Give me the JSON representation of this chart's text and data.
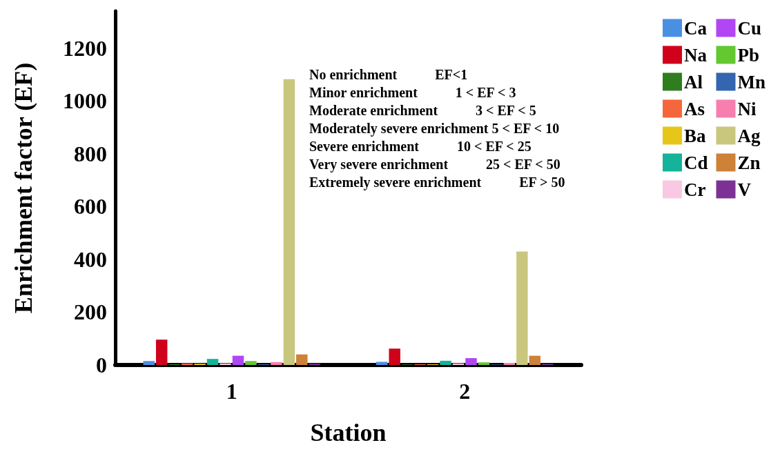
{
  "chart_data": {
    "type": "bar",
    "xlabel": "Station",
    "ylabel": "Enrichment factor (EF)",
    "categories": [
      "1",
      "2"
    ],
    "series": [
      {
        "name": "Ca",
        "color": "#4a90e2",
        "values": [
          15,
          12
        ]
      },
      {
        "name": "Na",
        "color": "#d0021b",
        "values": [
          96,
          62
        ]
      },
      {
        "name": "Al",
        "color": "#2e7d1e",
        "values": [
          3,
          2
        ]
      },
      {
        "name": "As",
        "color": "#f5673a",
        "values": [
          6,
          3
        ]
      },
      {
        "name": "Ba",
        "color": "#e6c619",
        "values": [
          5,
          3
        ]
      },
      {
        "name": "Cd",
        "color": "#14b39a",
        "values": [
          23,
          16
        ]
      },
      {
        "name": "Cr",
        "color": "#f9c8e2",
        "values": [
          6,
          6
        ]
      },
      {
        "name": "Cu",
        "color": "#b146f5",
        "values": [
          35,
          26
        ]
      },
      {
        "name": "Pb",
        "color": "#63c832",
        "values": [
          15,
          10
        ]
      },
      {
        "name": "Mn",
        "color": "#3465b0",
        "values": [
          3,
          2
        ]
      },
      {
        "name": "Ni",
        "color": "#f77fb0",
        "values": [
          11,
          8
        ]
      },
      {
        "name": "Ag",
        "color": "#c9c77e",
        "values": [
          1082,
          430
        ]
      },
      {
        "name": "Zn",
        "color": "#cd8237",
        "values": [
          40,
          35
        ]
      },
      {
        "name": "V",
        "color": "#7b3294",
        "values": [
          5,
          4
        ]
      }
    ],
    "ylim": [
      0,
      1340
    ],
    "yticks": [
      0,
      200,
      400,
      600,
      800,
      1000,
      1200
    ],
    "grid": false,
    "legend": "top right",
    "annotations": [
      "No enrichment           EF<1",
      "Minor enrichment           1 < EF < 3",
      "Moderate enrichment           3 < EF < 5",
      "Moderately severe enrichment 5 < EF < 10",
      "Severe enrichment           10 < EF < 25",
      "Very severe enrichment           25 < EF < 50",
      "Extremely severe enrichment           EF > 50"
    ]
  }
}
